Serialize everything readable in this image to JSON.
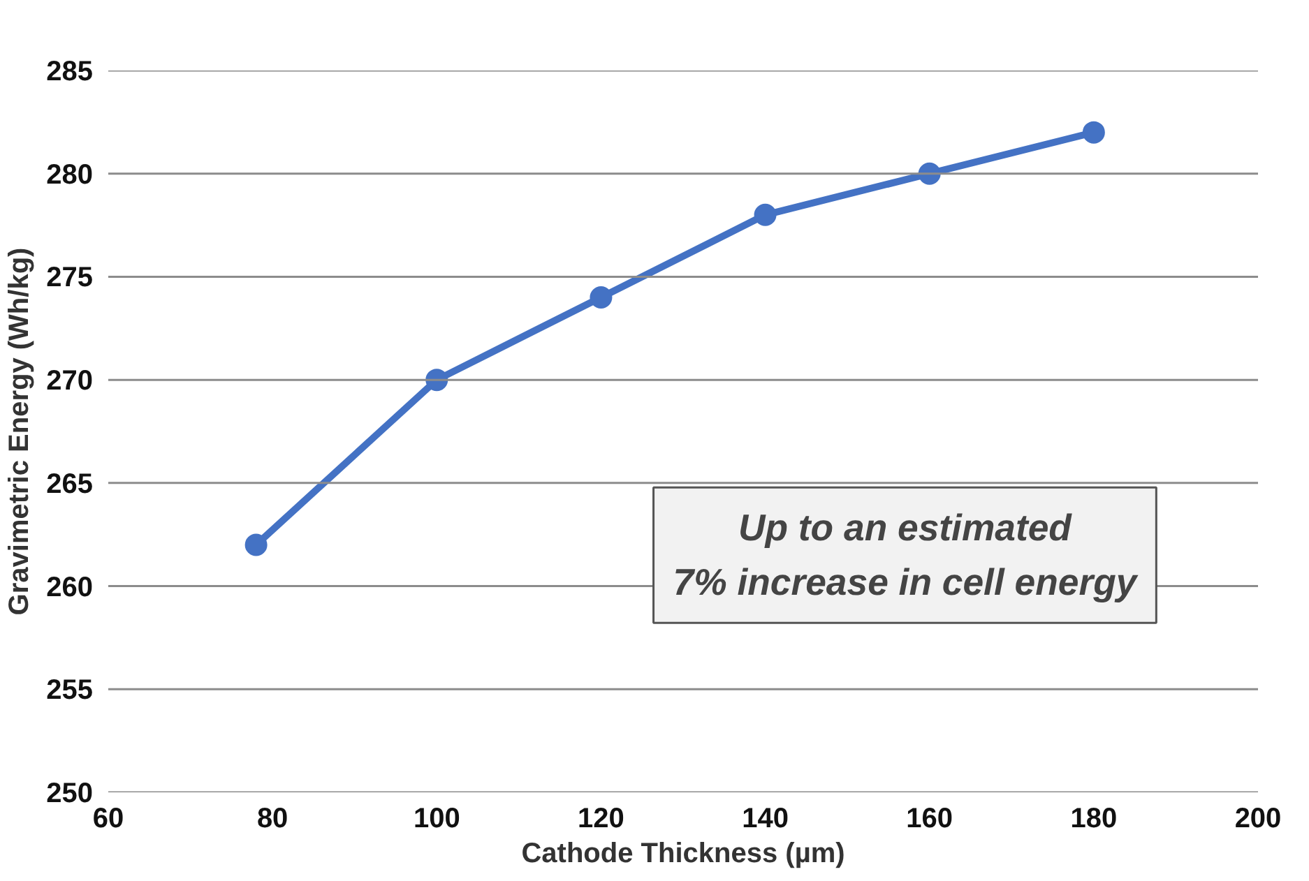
{
  "chart_data": {
    "type": "line",
    "xlabel": "Cathode Thickness (µm)",
    "ylabel": "Gravimetric Energy (Wh/kg)",
    "x": [
      78,
      100,
      120,
      140,
      160,
      180
    ],
    "series": [
      {
        "color": "#4472c4",
        "values": [
          262,
          270,
          274,
          278,
          280,
          282
        ]
      }
    ],
    "xlim": [
      60,
      200
    ],
    "xticks": [
      60,
      80,
      100,
      120,
      140,
      160,
      180,
      200
    ],
    "ylim": [
      250,
      285
    ],
    "yticks": [
      250,
      255,
      260,
      265,
      270,
      275,
      280,
      285
    ],
    "grid": "y",
    "marker": "circle",
    "line_style": "solid",
    "annotations": [
      "Up to an estimated\n7% increase in cell energy"
    ]
  }
}
